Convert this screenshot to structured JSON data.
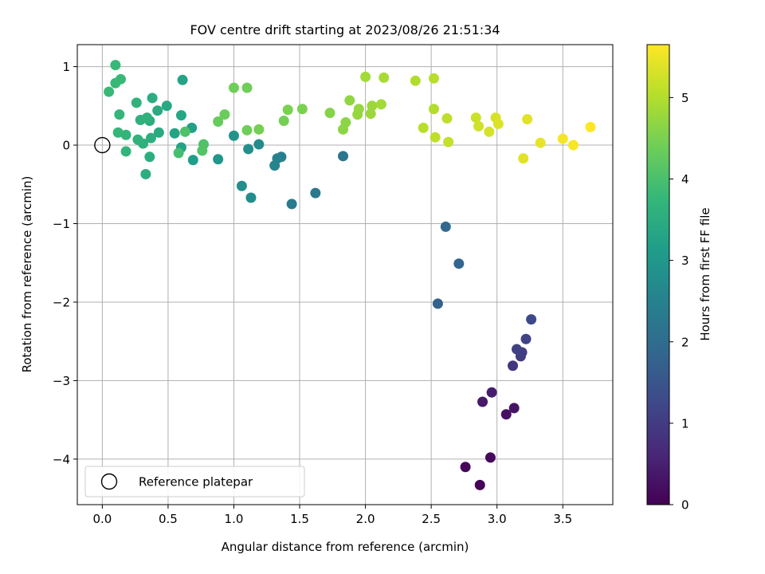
{
  "chart_data": {
    "type": "scatter",
    "title": "FOV centre drift starting at 2023/08/26 21:51:34",
    "xlabel": "Angular distance from reference (arcmin)",
    "ylabel": "Rotation from reference (arcmin)",
    "xlim": [
      -0.19,
      3.88
    ],
    "ylim": [
      -4.58,
      1.28
    ],
    "x_ticks": [
      0.0,
      0.5,
      1.0,
      1.5,
      2.0,
      2.5,
      3.0,
      3.5
    ],
    "x_tick_labels": [
      "0.0",
      "0.5",
      "1.0",
      "1.5",
      "2.0",
      "2.5",
      "3.0",
      "3.5"
    ],
    "y_ticks": [
      -4,
      -3,
      -2,
      -1,
      0,
      1
    ],
    "y_tick_labels": [
      "−4",
      "−3",
      "−2",
      "−1",
      "0",
      "1"
    ],
    "grid": true,
    "legend": {
      "placement": "lower-left",
      "entries": [
        "Reference platepar"
      ]
    },
    "reference_point": {
      "x": 0.0,
      "y": 0.0,
      "name": "Reference platepar"
    },
    "colorbar": {
      "label": "Hours from first FF file",
      "range": [
        0,
        5.65
      ],
      "ticks": [
        0,
        1,
        2,
        3,
        4,
        5
      ],
      "tick_labels": [
        "0",
        "1",
        "2",
        "3",
        "4",
        "5"
      ],
      "colormap": [
        "#440154",
        "#482878",
        "#3e4989",
        "#31688e",
        "#26828e",
        "#1f9e89",
        "#35b779",
        "#6ece58",
        "#b5de2b",
        "#fde725"
      ]
    },
    "points": [
      {
        "x": 2.87,
        "y": -4.33,
        "t": 0.05
      },
      {
        "x": 2.76,
        "y": -4.1,
        "t": 0.1
      },
      {
        "x": 2.95,
        "y": -3.98,
        "t": 0.15
      },
      {
        "x": 3.07,
        "y": -3.43,
        "t": 0.25
      },
      {
        "x": 3.13,
        "y": -3.35,
        "t": 0.3
      },
      {
        "x": 2.89,
        "y": -3.27,
        "t": 0.4
      },
      {
        "x": 2.96,
        "y": -3.15,
        "t": 0.45
      },
      {
        "x": 3.12,
        "y": -2.81,
        "t": 0.9
      },
      {
        "x": 3.18,
        "y": -2.69,
        "t": 1.0
      },
      {
        "x": 3.19,
        "y": -2.64,
        "t": 1.05
      },
      {
        "x": 3.15,
        "y": -2.6,
        "t": 1.1
      },
      {
        "x": 3.22,
        "y": -2.47,
        "t": 1.15
      },
      {
        "x": 3.26,
        "y": -2.22,
        "t": 1.25
      },
      {
        "x": 2.55,
        "y": -2.02,
        "t": 1.75
      },
      {
        "x": 2.71,
        "y": -1.51,
        "t": 1.85
      },
      {
        "x": 2.61,
        "y": -1.04,
        "t": 1.9
      },
      {
        "x": 1.83,
        "y": -0.14,
        "t": 2.2
      },
      {
        "x": 1.62,
        "y": -0.61,
        "t": 2.3
      },
      {
        "x": 1.44,
        "y": -0.75,
        "t": 2.35
      },
      {
        "x": 1.36,
        "y": -0.15,
        "t": 2.45
      },
      {
        "x": 1.33,
        "y": -0.17,
        "t": 2.5
      },
      {
        "x": 1.31,
        "y": -0.26,
        "t": 2.55
      },
      {
        "x": 1.19,
        "y": 0.01,
        "t": 2.7
      },
      {
        "x": 1.13,
        "y": -0.67,
        "t": 2.75
      },
      {
        "x": 1.06,
        "y": -0.52,
        "t": 2.78
      },
      {
        "x": 1.11,
        "y": -0.05,
        "t": 2.8
      },
      {
        "x": 1.0,
        "y": 0.12,
        "t": 2.9
      },
      {
        "x": 0.88,
        "y": -0.18,
        "t": 2.95
      },
      {
        "x": 0.69,
        "y": -0.19,
        "t": 3.15
      },
      {
        "x": 0.68,
        "y": 0.22,
        "t": 3.2
      },
      {
        "x": 0.6,
        "y": -0.03,
        "t": 3.25
      },
      {
        "x": 0.55,
        "y": 0.15,
        "t": 3.3
      },
      {
        "x": 0.61,
        "y": 0.83,
        "t": 3.3
      },
      {
        "x": 0.6,
        "y": 0.38,
        "t": 3.35
      },
      {
        "x": 0.49,
        "y": 0.5,
        "t": 3.4
      },
      {
        "x": 0.43,
        "y": 0.16,
        "t": 3.45
      },
      {
        "x": 0.42,
        "y": 0.44,
        "t": 3.45
      },
      {
        "x": 0.38,
        "y": 0.6,
        "t": 3.5
      },
      {
        "x": 0.36,
        "y": 0.31,
        "t": 3.5
      },
      {
        "x": 0.37,
        "y": 0.09,
        "t": 3.55
      },
      {
        "x": 0.36,
        "y": -0.15,
        "t": 3.55
      },
      {
        "x": 0.33,
        "y": -0.37,
        "t": 3.55
      },
      {
        "x": 0.34,
        "y": 0.35,
        "t": 3.6
      },
      {
        "x": 0.31,
        "y": 0.02,
        "t": 3.6
      },
      {
        "x": 0.29,
        "y": 0.32,
        "t": 3.6
      },
      {
        "x": 0.27,
        "y": 0.07,
        "t": 3.65
      },
      {
        "x": 0.26,
        "y": 0.54,
        "t": 3.65
      },
      {
        "x": 0.18,
        "y": 0.13,
        "t": 3.7
      },
      {
        "x": 0.18,
        "y": -0.08,
        "t": 3.7
      },
      {
        "x": 0.13,
        "y": 0.39,
        "t": 3.75
      },
      {
        "x": 0.12,
        "y": 0.16,
        "t": 3.75
      },
      {
        "x": 0.14,
        "y": 0.84,
        "t": 3.8
      },
      {
        "x": 0.1,
        "y": 1.02,
        "t": 3.8
      },
      {
        "x": 0.1,
        "y": 0.79,
        "t": 3.8
      },
      {
        "x": 0.05,
        "y": 0.68,
        "t": 3.8
      },
      {
        "x": 0.58,
        "y": -0.1,
        "t": 3.95
      },
      {
        "x": 0.63,
        "y": 0.17,
        "t": 4.05
      },
      {
        "x": 0.77,
        "y": 0.01,
        "t": 4.05
      },
      {
        "x": 0.76,
        "y": -0.07,
        "t": 4.1
      },
      {
        "x": 0.88,
        "y": 0.3,
        "t": 4.3
      },
      {
        "x": 0.93,
        "y": 0.39,
        "t": 4.35
      },
      {
        "x": 1.0,
        "y": 0.73,
        "t": 4.4
      },
      {
        "x": 1.1,
        "y": 0.73,
        "t": 4.4
      },
      {
        "x": 1.1,
        "y": 0.19,
        "t": 4.4
      },
      {
        "x": 1.19,
        "y": 0.2,
        "t": 4.45
      },
      {
        "x": 1.38,
        "y": 0.31,
        "t": 4.45
      },
      {
        "x": 1.41,
        "y": 0.45,
        "t": 4.5
      },
      {
        "x": 1.52,
        "y": 0.46,
        "t": 4.5
      },
      {
        "x": 1.73,
        "y": 0.41,
        "t": 4.6
      },
      {
        "x": 1.83,
        "y": 0.2,
        "t": 4.65
      },
      {
        "x": 1.85,
        "y": 0.29,
        "t": 4.65
      },
      {
        "x": 1.88,
        "y": 0.57,
        "t": 4.7
      },
      {
        "x": 1.94,
        "y": 0.39,
        "t": 4.75
      },
      {
        "x": 1.95,
        "y": 0.46,
        "t": 4.75
      },
      {
        "x": 2.04,
        "y": 0.4,
        "t": 4.8
      },
      {
        "x": 2.05,
        "y": 0.5,
        "t": 4.8
      },
      {
        "x": 2.12,
        "y": 0.52,
        "t": 4.85
      },
      {
        "x": 2.0,
        "y": 0.87,
        "t": 4.85
      },
      {
        "x": 2.14,
        "y": 0.86,
        "t": 4.9
      },
      {
        "x": 2.38,
        "y": 0.82,
        "t": 5.0
      },
      {
        "x": 2.52,
        "y": 0.85,
        "t": 5.05
      },
      {
        "x": 2.52,
        "y": 0.46,
        "t": 5.0
      },
      {
        "x": 2.44,
        "y": 0.22,
        "t": 5.05
      },
      {
        "x": 2.53,
        "y": 0.1,
        "t": 5.1
      },
      {
        "x": 2.62,
        "y": 0.34,
        "t": 5.1
      },
      {
        "x": 2.63,
        "y": 0.04,
        "t": 5.15
      },
      {
        "x": 2.84,
        "y": 0.35,
        "t": 5.2
      },
      {
        "x": 2.86,
        "y": 0.24,
        "t": 5.25
      },
      {
        "x": 2.94,
        "y": 0.17,
        "t": 5.3
      },
      {
        "x": 2.99,
        "y": 0.35,
        "t": 5.3
      },
      {
        "x": 3.01,
        "y": 0.27,
        "t": 5.35
      },
      {
        "x": 3.2,
        "y": -0.17,
        "t": 5.4
      },
      {
        "x": 3.23,
        "y": 0.33,
        "t": 5.4
      },
      {
        "x": 3.33,
        "y": 0.03,
        "t": 5.45
      },
      {
        "x": 3.5,
        "y": 0.08,
        "t": 5.55
      },
      {
        "x": 3.58,
        "y": 0.0,
        "t": 5.6
      },
      {
        "x": 3.71,
        "y": 0.23,
        "t": 5.65
      }
    ]
  }
}
